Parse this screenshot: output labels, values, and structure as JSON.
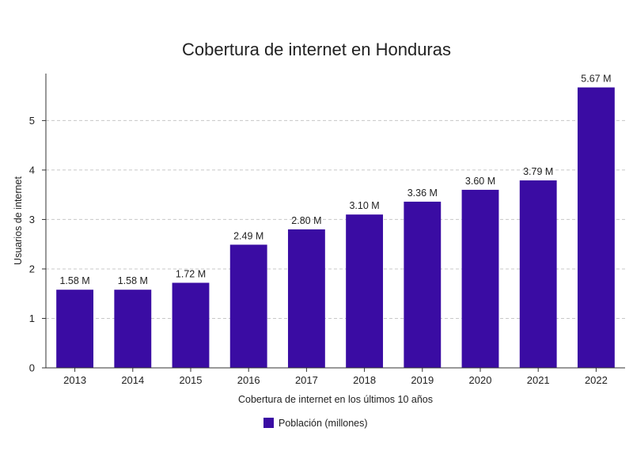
{
  "chart_data": {
    "type": "bar",
    "title": "Cobertura de internet en Honduras",
    "xlabel": "Cobertura de internet en los últimos 10 años",
    "ylabel": "Usuarios de internet",
    "categories": [
      "2013",
      "2014",
      "2015",
      "2016",
      "2017",
      "2018",
      "2019",
      "2020",
      "2021",
      "2022"
    ],
    "series": [
      {
        "name": "Población (millones)",
        "values": [
          1.58,
          1.58,
          1.72,
          2.49,
          2.8,
          3.1,
          3.36,
          3.6,
          3.79,
          5.67
        ],
        "labels": [
          "1.58 M",
          "1.58 M",
          "1.72 M",
          "2.49 M",
          "2.80 M",
          "3.10 M",
          "3.36 M",
          "3.60 M",
          "3.79 M",
          "5.67 M"
        ],
        "color": "#3a0ca3"
      }
    ],
    "ylim": [
      0,
      5.95
    ],
    "yticks": [
      0,
      1,
      2,
      3,
      4,
      5
    ],
    "grid": true,
    "legend_position": "bottom-center"
  }
}
